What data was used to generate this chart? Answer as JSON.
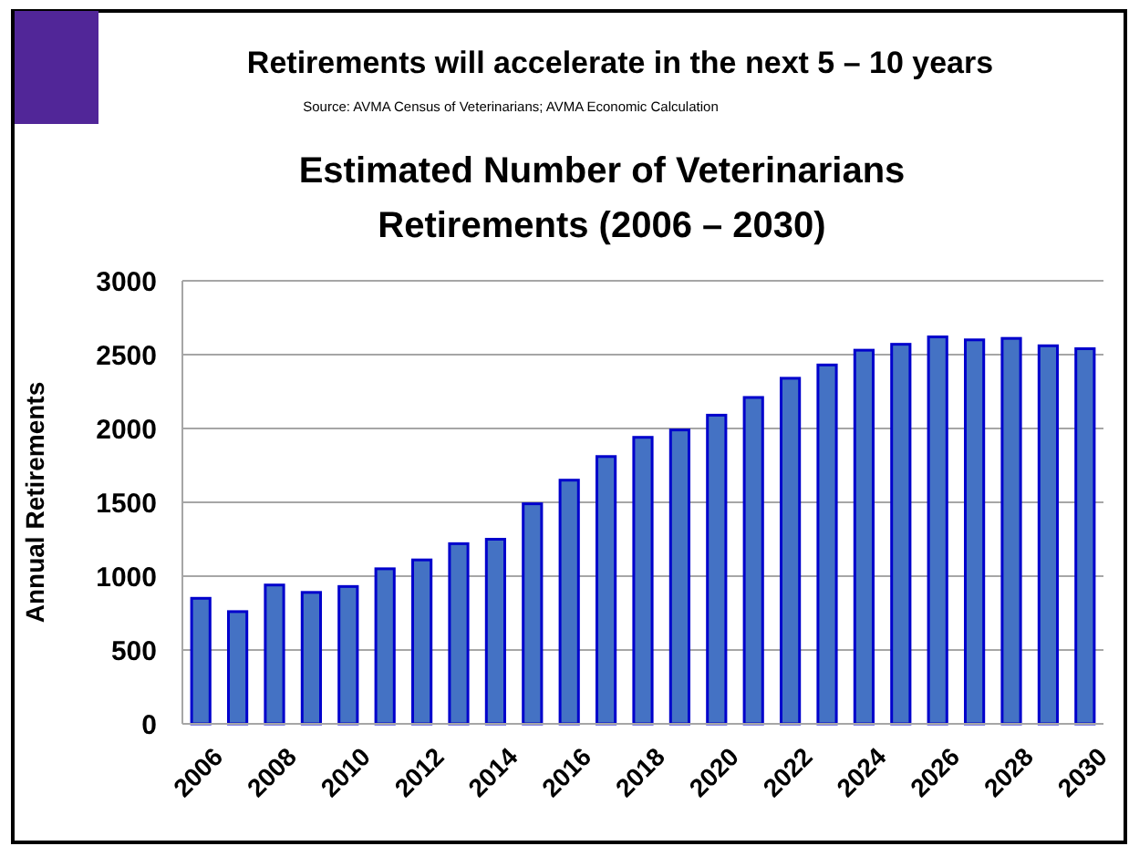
{
  "chart_data": {
    "type": "bar",
    "title": "Retirements will accelerate in the next 5 – 10 years",
    "subtitle": "Estimated Number of Veterinarians Retirements (2006 – 2030)",
    "annotations": [
      "Source: AVMA Census of Veterinarians;  AVMA Economic Calculation"
    ],
    "ylabel": "Annual Retirements",
    "categories": [
      "2006",
      null,
      "2008",
      null,
      "2010",
      null,
      "2012",
      null,
      "2014",
      null,
      "2016",
      null,
      "2018",
      null,
      "2020",
      null,
      "2022",
      null,
      "2024",
      null,
      "2026",
      null,
      "2028",
      null,
      "2030"
    ],
    "values": [
      850,
      760,
      940,
      890,
      930,
      1050,
      1110,
      1220,
      1250,
      1490,
      1650,
      1810,
      1940,
      1990,
      2090,
      2210,
      2340,
      2430,
      2530,
      2570,
      2620,
      2600,
      2610,
      2560,
      2540
    ],
    "color": "#4472c4",
    "ylim": [
      0,
      3000
    ],
    "yticks": [
      0,
      500,
      1000,
      1500,
      2000,
      2500,
      3000
    ],
    "grid": "y"
  }
}
